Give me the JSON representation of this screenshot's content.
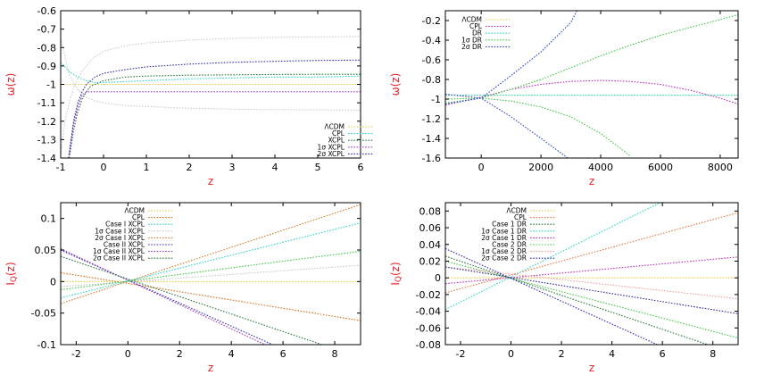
{
  "chart_data": [
    {
      "type": "line",
      "xlabel": "z",
      "ylabel": "ω(z)",
      "xlim": [
        -1,
        6
      ],
      "ylim": [
        -1.4,
        -0.6
      ],
      "xticks": [
        -1,
        0,
        1,
        2,
        3,
        4,
        5,
        6
      ],
      "yticks": [
        -1.4,
        -1.3,
        -1.2,
        -1.1,
        -1,
        -0.9,
        -0.8,
        -0.7,
        -0.6
      ],
      "legend_position": "bottom-right",
      "series": [
        {
          "name": "ΛCDM",
          "color": "#e8c84a",
          "x": [
            -1,
            6
          ],
          "y": [
            -1,
            -1
          ]
        },
        {
          "name": "CPL",
          "color": "#2fd6c8",
          "x": [
            -1,
            -0.8,
            -0.6,
            -0.4,
            -0.2,
            0,
            0.5,
            1,
            2,
            3,
            4,
            5,
            6
          ],
          "y": [
            -0.88,
            -0.93,
            -0.96,
            -0.98,
            -0.99,
            -0.99,
            -0.985,
            -0.98,
            -0.97,
            -0.965,
            -0.96,
            -0.96,
            -0.955
          ]
        },
        {
          "name": "XCPL",
          "color": "#2d7a3f",
          "x": [
            -0.8,
            -0.7,
            -0.6,
            -0.5,
            -0.4,
            -0.3,
            0,
            0.5,
            1,
            2,
            3,
            4,
            5,
            6
          ],
          "y": [
            -1.4,
            -1.25,
            -1.15,
            -1.08,
            -1.04,
            -1.01,
            -0.98,
            -0.96,
            -0.955,
            -0.95,
            -0.948,
            -0.946,
            -0.945,
            -0.945
          ]
        },
        {
          "name": "1σ XCPL",
          "color": "#a040d0",
          "x": [
            -0.82,
            -0.7,
            -0.6,
            -0.5,
            -0.4,
            -0.3,
            -0.2,
            0,
            0.5,
            1,
            2,
            3,
            4,
            5,
            6
          ],
          "y": [
            -1.4,
            -1.22,
            -1.12,
            -1.06,
            -1.04,
            -1.04,
            -1.04,
            -1.04,
            -1.04,
            -1.04,
            -1.04,
            -1.04,
            -1.04,
            -1.04,
            -1.04
          ]
        },
        {
          "name": "2σ XCPL",
          "color": "#3030b0",
          "x": [
            -0.8,
            -0.7,
            -0.6,
            -0.5,
            -0.4,
            -0.3,
            -0.2,
            -0.1,
            0,
            0.5,
            1,
            2,
            3,
            4,
            5,
            6
          ],
          "y": [
            -1.38,
            -1.2,
            -1.1,
            -1.04,
            -1.0,
            -0.98,
            -0.96,
            -0.95,
            -0.94,
            -0.92,
            -0.905,
            -0.89,
            -0.88,
            -0.875,
            -0.87,
            -0.868
          ]
        },
        {
          "name": "",
          "color": "#cccccc",
          "x": [
            -1,
            -0.9,
            -0.8,
            -0.7,
            -0.6,
            -0.5,
            -0.4,
            -0.3,
            -0.2,
            0,
            0.5,
            1,
            2,
            3,
            4,
            5,
            6
          ],
          "y": [
            -1.38,
            -1.2,
            -1.1,
            -1.02,
            -0.97,
            -0.93,
            -0.9,
            -0.87,
            -0.85,
            -0.82,
            -0.79,
            -0.775,
            -0.76,
            -0.75,
            -0.745,
            -0.742,
            -0.74
          ]
        },
        {
          "name": "",
          "color": "#cccccc",
          "x": [
            -1,
            -0.8,
            -0.6,
            -0.4,
            -0.2,
            0,
            0.5,
            1,
            2,
            3,
            4,
            5,
            6
          ],
          "y": [
            -0.75,
            -0.95,
            -1.03,
            -1.07,
            -1.09,
            -1.1,
            -1.115,
            -1.12,
            -1.13,
            -1.135,
            -1.137,
            -1.138,
            -1.14
          ]
        }
      ]
    },
    {
      "type": "line",
      "xlabel": "z",
      "ylabel": "ω(z)",
      "xlim": [
        -1200,
        8600
      ],
      "ylim": [
        -1.6,
        -0.1
      ],
      "xticks": [
        0,
        2000,
        4000,
        6000,
        8000
      ],
      "yticks": [
        -1.6,
        -1.4,
        -1.2,
        -1,
        -0.8,
        -0.6,
        -0.4,
        -0.2
      ],
      "legend_position": "top-left",
      "series": [
        {
          "name": "ΛCDM",
          "color": "#e8c84a",
          "x": [
            -1200,
            8600
          ],
          "y": [
            -0.96,
            -0.96
          ]
        },
        {
          "name": "CPL",
          "color": "#c030c0",
          "x": [
            -1200,
            0,
            1000,
            2000,
            3000,
            4000,
            5000,
            6000,
            7000,
            8000,
            8600
          ],
          "y": [
            -1.06,
            -0.98,
            -0.9,
            -0.85,
            -0.82,
            -0.81,
            -0.82,
            -0.85,
            -0.91,
            -0.99,
            -1.05
          ]
        },
        {
          "name": "DR",
          "color": "#2fd6c8",
          "x": [
            -1200,
            0,
            2000,
            4000,
            6000,
            8000,
            8600
          ],
          "y": [
            -0.96,
            -0.96,
            -0.96,
            -0.96,
            -0.96,
            -0.96,
            -0.96
          ]
        },
        {
          "name": "1σ DR",
          "color": "#48c848",
          "x": [
            -1200,
            0,
            1000,
            2000,
            3000,
            4000,
            5000,
            6000,
            7000,
            8000,
            8600
          ],
          "y": [
            -1.04,
            -0.99,
            -0.9,
            -0.8,
            -0.68,
            -0.56,
            -0.45,
            -0.35,
            -0.27,
            -0.19,
            -0.14
          ],
          "extra": true
        },
        {
          "name": "2σ DR",
          "color": "#3048c8",
          "x": [
            -1200,
            0,
            1000,
            2000,
            3000,
            3200
          ],
          "y": [
            -1.05,
            -0.99,
            -0.76,
            -0.52,
            -0.22,
            -0.1
          ]
        },
        {
          "name": "",
          "color": "#48c848",
          "x": [
            -1200,
            0,
            1000,
            2000,
            3000,
            4000,
            5000
          ],
          "y": [
            -1.0,
            -0.99,
            -1.02,
            -1.08,
            -1.18,
            -1.35,
            -1.58
          ]
        },
        {
          "name": "",
          "color": "#3048c8",
          "x": [
            -1200,
            0,
            1000,
            2000,
            2900
          ],
          "y": [
            -0.95,
            -0.99,
            -1.18,
            -1.4,
            -1.6
          ]
        }
      ]
    },
    {
      "type": "line",
      "xlabel": "z",
      "ylabel": "I_Q(z)",
      "xlim": [
        -2.6,
        9
      ],
      "ylim": [
        -0.1,
        0.125
      ],
      "xticks": [
        -2,
        0,
        2,
        4,
        6,
        8
      ],
      "yticks": [
        -0.1,
        -0.05,
        0,
        0.05,
        0.1
      ],
      "legend_position": "top-left",
      "series": [
        {
          "name": "ΛCDM",
          "color": "#e8c84a",
          "x": [
            -2.6,
            9
          ],
          "y": [
            0,
            0
          ]
        },
        {
          "name": "CPL",
          "color": "#d87020",
          "x": [
            -2.6,
            9
          ],
          "y": [
            0.014,
            -0.062
          ]
        },
        {
          "name": "Case I XCPL",
          "color": "#2fd6c8",
          "x": [
            -2.6,
            9
          ],
          "y": [
            -0.026,
            0.093
          ]
        },
        {
          "name": "1σ Case I XCPL",
          "color": "#c8c8c8",
          "x": [
            -2.6,
            9
          ],
          "y": [
            -0.008,
            0.026
          ]
        },
        {
          "name": "2σ Case I XCPL",
          "color": "#d88030",
          "x": [
            -2.6,
            9
          ],
          "y": [
            -0.035,
            0.122
          ]
        },
        {
          "name": "Case II XCPL",
          "color": "#3030c0",
          "x": [
            -2.6,
            5.6
          ],
          "y": [
            0.05,
            -0.1
          ]
        },
        {
          "name": "1σ Case II XCPL",
          "color": "#a040c0",
          "x": [
            -2.6,
            5.3
          ],
          "y": [
            0.052,
            -0.1
          ]
        },
        {
          "name": "2σ Case II XCPL",
          "color": "#2d7a3f",
          "x": [
            -2.6,
            7.5
          ],
          "y": [
            0.04,
            -0.1
          ]
        },
        {
          "name": "",
          "color": "#48c848",
          "x": [
            -2.6,
            9
          ],
          "y": [
            -0.013,
            0.048
          ]
        }
      ]
    },
    {
      "type": "line",
      "xlabel": "z",
      "ylabel": "I_Q(z)",
      "xlim": [
        -2.6,
        9
      ],
      "ylim": [
        -0.08,
        0.09
      ],
      "xticks": [
        -2,
        0,
        2,
        4,
        6,
        8
      ],
      "yticks": [
        -0.08,
        -0.06,
        -0.04,
        -0.02,
        0,
        0.02,
        0.04,
        0.06,
        0.08
      ],
      "legend_position": "top-left",
      "series": [
        {
          "name": "ΛCDM",
          "color": "#e8c84a",
          "x": [
            -2.6,
            9
          ],
          "y": [
            0,
            0
          ]
        },
        {
          "name": "CPL",
          "color": "#e87a4a",
          "x": [
            -2.6,
            9
          ],
          "y": [
            -0.018,
            0.078
          ]
        },
        {
          "name": "Case 1 DR",
          "color": "#2d7a3f",
          "x": [
            -2.6,
            7.8
          ],
          "y": [
            0.026,
            -0.08
          ]
        },
        {
          "name": "1σ Case 1 DR",
          "color": "#2fd6c8",
          "x": [
            -2.6,
            5.9
          ],
          "y": [
            -0.038,
            0.09
          ]
        },
        {
          "name": "2σ Case 1 DR",
          "color": "#c030c0",
          "x": [
            -2.6,
            9
          ],
          "y": [
            -0.007,
            0.025
          ]
        },
        {
          "name": "Case 2 DR",
          "color": "#48c848",
          "x": [
            -2.6,
            9
          ],
          "y": [
            0.02,
            -0.072
          ]
        },
        {
          "name": "1σ Case 2 DR",
          "color": "#f0a0a0",
          "x": [
            -2.6,
            9
          ],
          "y": [
            0.013,
            -0.025
          ]
        },
        {
          "name": "2σ Case 2 DR",
          "color": "#3030c0",
          "x": [
            -2.6,
            5.8
          ],
          "y": [
            0.035,
            -0.08
          ]
        },
        {
          "name": "",
          "color": "#3030a0",
          "x": [
            -2.6,
            9
          ],
          "y": [
            0.013,
            -0.043
          ]
        }
      ]
    }
  ]
}
